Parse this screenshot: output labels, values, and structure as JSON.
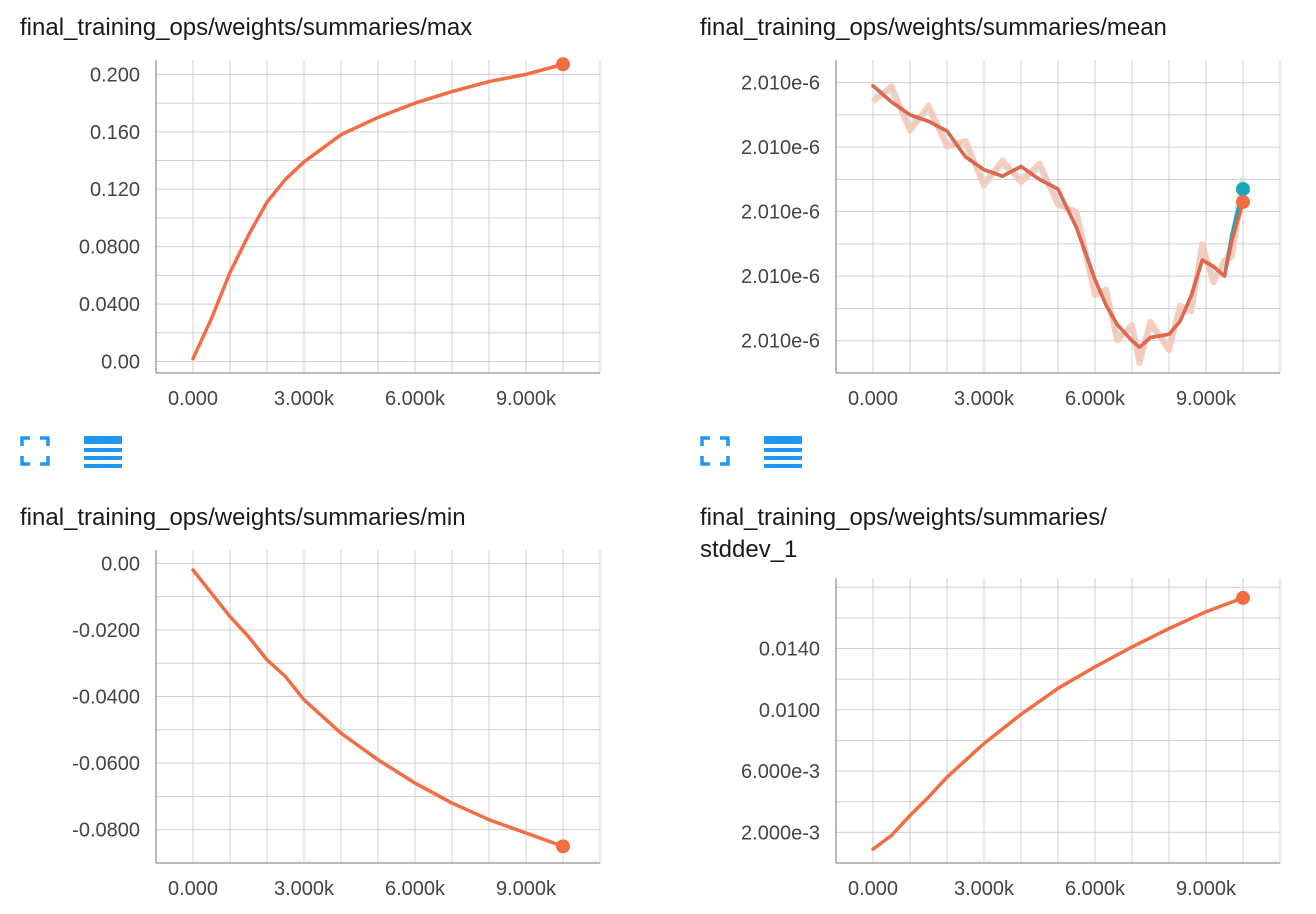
{
  "colors": {
    "accent": "#f26d43",
    "alt_series": "#1ba5b8",
    "icon": "#2196f3",
    "grid": "#d0d0d0",
    "band": "#f7c3b1",
    "band_alt": "#c3e4ea"
  },
  "icons": {
    "fullscreen": "fullscreen-icon",
    "data_toggle": "data-list-icon"
  },
  "chart_data": [
    {
      "type": "line",
      "title": "final_training_ops/weights/summaries/max",
      "xlabel": "",
      "ylabel": "",
      "xlim": [
        -1000,
        11000
      ],
      "ylim": [
        -0.008,
        0.21
      ],
      "x_ticks": [
        0,
        3000,
        6000,
        9000
      ],
      "x_tick_labels": [
        "0.000",
        "3.000k",
        "6.000k",
        "9.000k"
      ],
      "y_ticks": [
        0,
        0.04,
        0.08,
        0.12,
        0.16,
        0.2
      ],
      "y_tick_labels": [
        "0.00",
        "0.0400",
        "0.0800",
        "0.120",
        "0.160",
        "0.200"
      ],
      "grid": true,
      "series": [
        {
          "x": [
            0,
            500,
            1000,
            1500,
            2000,
            2500,
            3000,
            4000,
            5000,
            6000,
            7000,
            8000,
            9000,
            10000
          ],
          "y": [
            0.002,
            0.03,
            0.062,
            0.088,
            0.111,
            0.127,
            0.139,
            0.158,
            0.17,
            0.18,
            0.188,
            0.195,
            0.2,
            0.207
          ]
        }
      ]
    },
    {
      "type": "line",
      "title": "final_training_ops/weights/summaries/mean",
      "xlabel": "",
      "ylabel": "",
      "xlim": [
        -1000,
        11000
      ],
      "ylim": [
        1.5,
        11.2
      ],
      "x_ticks": [
        0,
        3000,
        6000,
        9000
      ],
      "x_tick_labels": [
        "0.000",
        "3.000k",
        "6.000k",
        "9.000k"
      ],
      "y_ticks": [
        2.5,
        4.5,
        6.5,
        8.5,
        10.5
      ],
      "y_tick_labels": [
        "2.010e-6",
        "2.010e-6",
        "2.010e-6",
        "2.010e-6",
        "2.010e-6"
      ],
      "grid": true,
      "series": [
        {
          "x": [
            0,
            500,
            1000,
            1500,
            2000,
            2500,
            3000,
            3500,
            4000,
            4500,
            5000,
            5500,
            6000,
            6300,
            6600,
            7000,
            7200,
            7500,
            8000,
            8300,
            8600,
            8900,
            9200,
            9500,
            9700,
            10000
          ],
          "y": [
            10.4,
            9.9,
            9.5,
            9.3,
            9.0,
            8.2,
            7.8,
            7.6,
            7.9,
            7.5,
            7.2,
            6.0,
            4.4,
            3.6,
            3.0,
            2.5,
            2.3,
            2.6,
            2.7,
            3.1,
            3.9,
            5.0,
            4.8,
            4.5,
            5.6,
            6.8
          ]
        },
        {
          "x": [
            0,
            500,
            1000,
            1500,
            2000,
            2500,
            3000,
            3500,
            4000,
            4500,
            5000,
            5500,
            6000,
            6300,
            6600,
            7000,
            7200,
            7500,
            8000,
            8300,
            8600,
            8900,
            9200,
            9500,
            9700,
            10000
          ],
          "y": [
            10.4,
            9.9,
            9.5,
            9.3,
            9.0,
            8.2,
            7.8,
            7.6,
            7.9,
            7.5,
            7.2,
            6.0,
            4.4,
            3.6,
            3.0,
            2.5,
            2.3,
            2.6,
            2.7,
            3.1,
            3.9,
            5.0,
            4.8,
            4.5,
            5.8,
            7.2
          ]
        }
      ]
    },
    {
      "type": "line",
      "title": "final_training_ops/weights/summaries/min",
      "xlabel": "",
      "ylabel": "",
      "xlim": [
        -1000,
        11000
      ],
      "ylim": [
        -0.09,
        0.004
      ],
      "x_ticks": [
        0,
        3000,
        6000,
        9000
      ],
      "x_tick_labels": [
        "0.000",
        "3.000k",
        "6.000k",
        "9.000k"
      ],
      "y_ticks": [
        0,
        -0.02,
        -0.04,
        -0.06,
        -0.08
      ],
      "y_tick_labels": [
        "0.00",
        "-0.0200",
        "-0.0400",
        "-0.0600",
        "-0.0800"
      ],
      "grid": true,
      "series": [
        {
          "x": [
            0,
            500,
            1000,
            1500,
            2000,
            2500,
            3000,
            4000,
            5000,
            6000,
            7000,
            8000,
            9000,
            10000
          ],
          "y": [
            -0.002,
            -0.009,
            -0.016,
            -0.022,
            -0.029,
            -0.034,
            -0.041,
            -0.051,
            -0.059,
            -0.066,
            -0.072,
            -0.077,
            -0.081,
            -0.085
          ]
        }
      ]
    },
    {
      "type": "line",
      "title": "final_training_ops/weights/summaries/\nstddev_1",
      "xlabel": "",
      "ylabel": "",
      "xlim": [
        -1000,
        11000
      ],
      "ylim": [
        0,
        0.0186
      ],
      "x_ticks": [
        0,
        3000,
        6000,
        9000
      ],
      "x_tick_labels": [
        "0.000",
        "3.000k",
        "6.000k",
        "9.000k"
      ],
      "y_ticks": [
        0.002,
        0.006,
        0.01,
        0.014
      ],
      "y_tick_labels": [
        "2.000e-3",
        "6.000e-3",
        "0.0100",
        "0.0140"
      ],
      "grid": true,
      "series": [
        {
          "x": [
            0,
            500,
            1000,
            1500,
            2000,
            2500,
            3000,
            4000,
            5000,
            6000,
            7000,
            8000,
            9000,
            10000
          ],
          "y": [
            0.0009,
            0.0018,
            0.0031,
            0.0043,
            0.0056,
            0.0067,
            0.0078,
            0.0097,
            0.0114,
            0.0128,
            0.0141,
            0.0153,
            0.0164,
            0.0173
          ]
        }
      ]
    }
  ]
}
